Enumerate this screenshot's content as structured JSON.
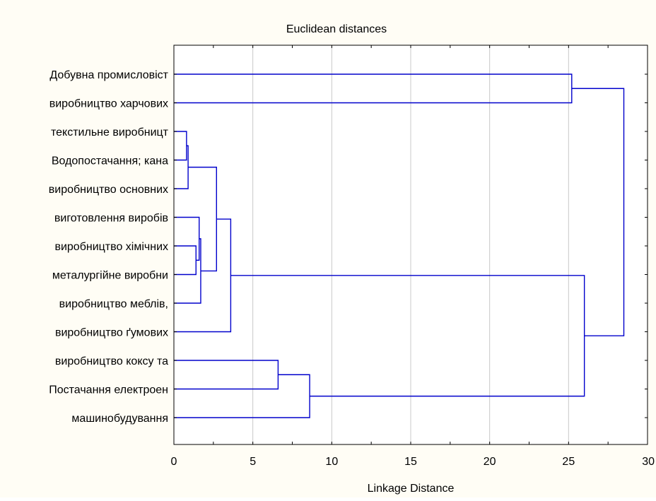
{
  "chart_data": {
    "type": "dendrogram",
    "title": "Euclidean distances",
    "xlabel": "Linkage Distance",
    "xlim": [
      0,
      30
    ],
    "x_ticks": [
      0,
      5,
      10,
      15,
      20,
      25,
      30
    ],
    "grid": "vertical",
    "orientation": "horizontal",
    "leaves": [
      "Добувна промисловіст",
      "виробництво харчових",
      "текстильне виробницт",
      "Водопостачання; кана",
      "виробництво основних",
      "виготовлення виробів",
      "виробництво хімічних",
      "металургійне виробни",
      "виробництво меблів,",
      "виробництво ґумових",
      "виробництво коксу та",
      "Постачання електроен",
      "машинобудування"
    ],
    "merges": [
      {
        "left": "L2",
        "right": "L3",
        "distance": 0.8
      },
      {
        "left": "M0",
        "right": "L4",
        "distance": 0.9
      },
      {
        "left": "L6",
        "right": "L7",
        "distance": 1.4
      },
      {
        "left": "L5",
        "right": "M2",
        "distance": 1.6
      },
      {
        "left": "M3",
        "right": "L8",
        "distance": 1.7
      },
      {
        "left": "M1",
        "right": "M4",
        "distance": 2.7
      },
      {
        "left": "M5",
        "right": "L9",
        "distance": 3.6
      },
      {
        "left": "L10",
        "right": "L11",
        "distance": 6.6
      },
      {
        "left": "M7",
        "right": "L12",
        "distance": 8.6
      },
      {
        "left": "L0",
        "right": "L1",
        "distance": 25.2
      },
      {
        "left": "M6",
        "right": "M8",
        "distance": 26.0
      },
      {
        "left": "M9",
        "right": "M10",
        "distance": 28.5
      }
    ],
    "colors": {
      "tree": "#0000cc",
      "grid": "#c8c8c8",
      "frame": "#000000",
      "plot_background": "#ffffff",
      "figure_background": "#fffdf5"
    }
  }
}
